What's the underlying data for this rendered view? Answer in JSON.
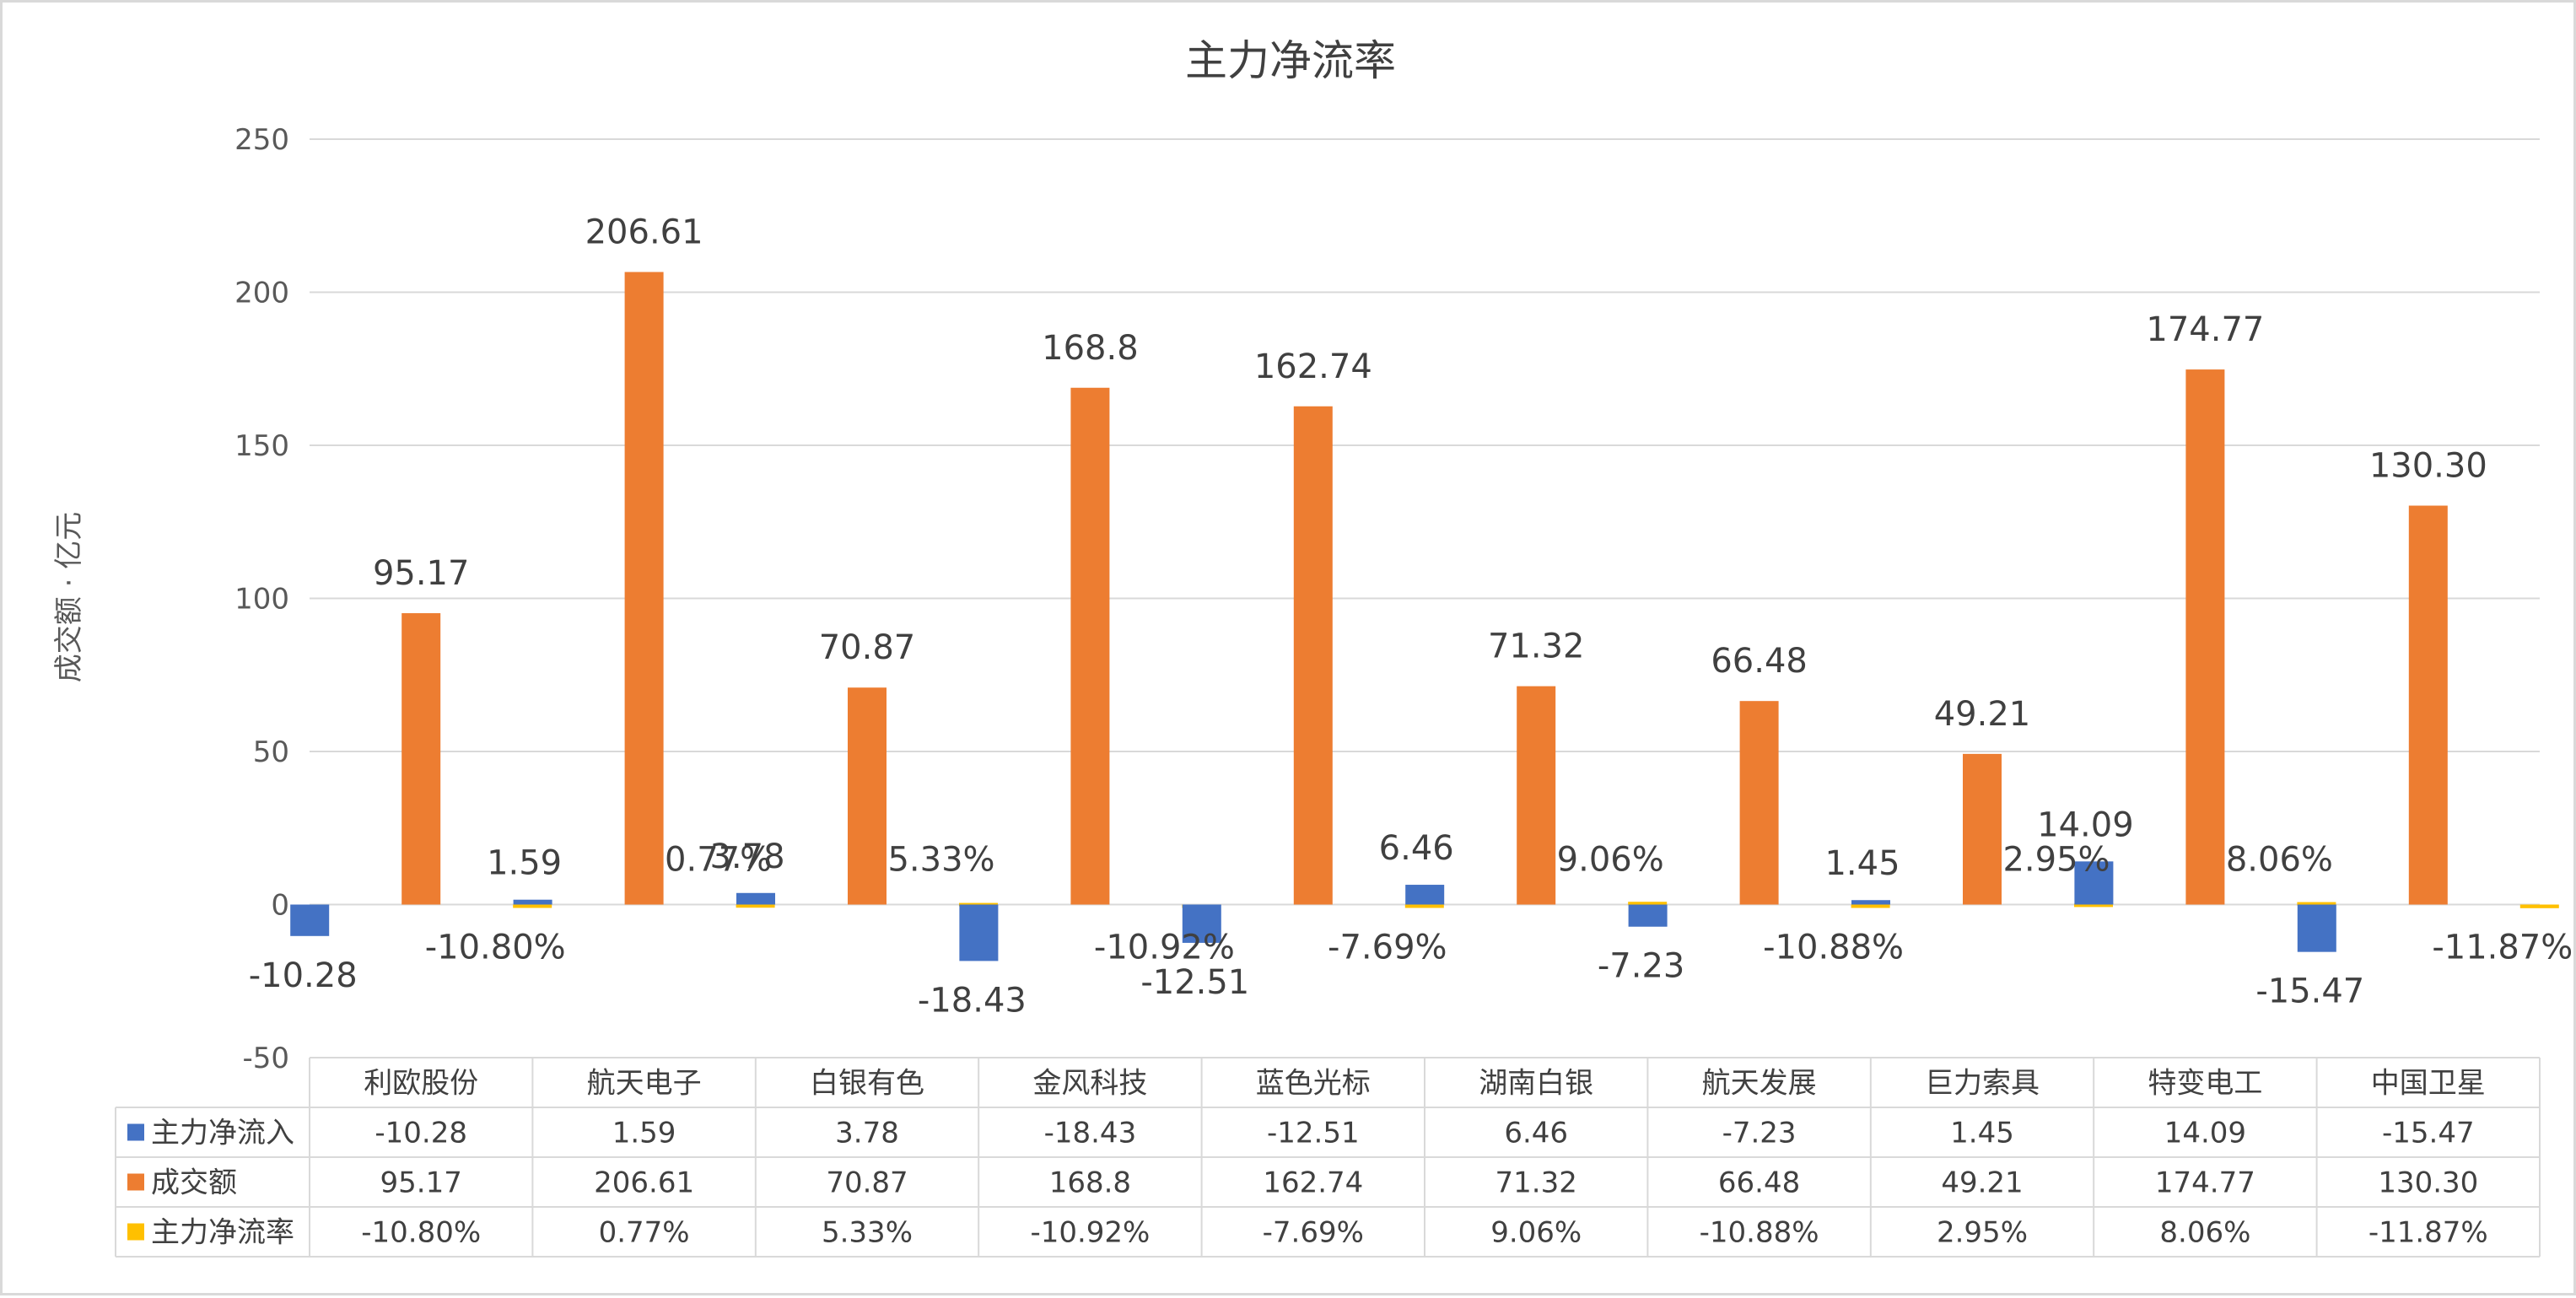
{
  "chart_data": {
    "type": "bar",
    "title": "主力净流率",
    "ylabel": "成交额 · 亿元",
    "xlabel": "",
    "ylim": [
      -50,
      250
    ],
    "yticks": [
      250,
      200,
      150,
      100,
      50,
      0,
      -50
    ],
    "grid": true,
    "legend": "data-table-bottom",
    "categories": [
      "利欧股份",
      "航天电子",
      "白银有色",
      "金风科技",
      "蓝色光标",
      "湖南白银",
      "航天发展",
      "巨力索具",
      "特变电工",
      "中国卫星"
    ],
    "series": [
      {
        "name": "主力净流入",
        "color": "#4472c4",
        "values": [
          -10.28,
          1.59,
          3.78,
          -18.43,
          -12.51,
          6.46,
          -7.23,
          1.45,
          14.09,
          -15.47
        ],
        "labels": [
          "-10.28",
          "1.59",
          "3.78",
          "-18.43",
          "-12.51",
          "6.46",
          "-7.23",
          "1.45",
          "14.09",
          "-15.47"
        ]
      },
      {
        "name": "成交额",
        "color": "#ed7d31",
        "values": [
          95.17,
          206.61,
          70.87,
          168.8,
          162.74,
          71.32,
          66.48,
          49.21,
          174.77,
          130.3
        ],
        "labels": [
          "95.17",
          "206.61",
          "70.87",
          "168.8",
          "162.74",
          "71.32",
          "66.48",
          "49.21",
          "174.77",
          "130.30"
        ]
      },
      {
        "name": "主力净流率",
        "color": "#ffc000",
        "values": [
          -10.8,
          0.77,
          5.33,
          -10.92,
          -7.69,
          9.06,
          -10.88,
          2.95,
          8.06,
          -11.87
        ],
        "unit": "%",
        "labels": [
          "-10.80%",
          "0.77%",
          "5.33%",
          "-10.92%",
          "-7.69%",
          "9.06%",
          "-10.88%",
          "2.95%",
          "8.06%",
          "-11.87%"
        ]
      }
    ]
  }
}
